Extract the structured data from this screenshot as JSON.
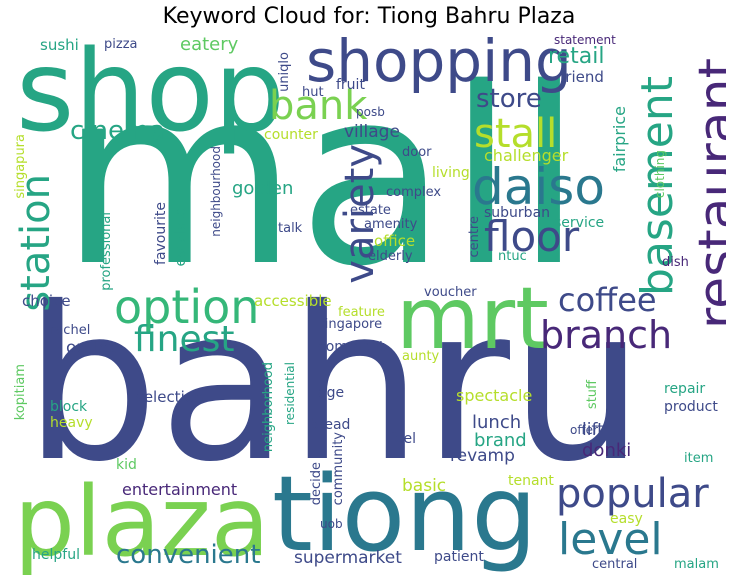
{
  "title": "Keyword Cloud for: Tiong Bahru Plaza",
  "palette": [
    "#440154",
    "#3b528b",
    "#21918c",
    "#26a584",
    "#5ec962",
    "#8fd744",
    "#b5de2b",
    "#fde725"
  ],
  "words": [
    {
      "text": "mall",
      "color": "#26a584"
    },
    {
      "text": "bahru",
      "color": "#3e4a89"
    },
    {
      "text": "plaza",
      "color": "#7ad151"
    },
    {
      "text": "tiong",
      "color": "#2a788e"
    },
    {
      "text": "shop",
      "color": "#26a584"
    },
    {
      "text": "shopping",
      "color": "#3e4a89"
    },
    {
      "text": "mrt",
      "color": "#5ec962"
    },
    {
      "text": "restaurant",
      "color": "#482878"
    },
    {
      "text": "daiso",
      "color": "#2a788e"
    },
    {
      "text": "option",
      "color": "#35b779"
    },
    {
      "text": "bank",
      "color": "#7ad151"
    },
    {
      "text": "basement",
      "color": "#26a584"
    },
    {
      "text": "stall",
      "color": "#b5de2b"
    },
    {
      "text": "floor",
      "color": "#3e4a89"
    },
    {
      "text": "station",
      "color": "#26a584"
    },
    {
      "text": "variety",
      "color": "#3e4a89"
    },
    {
      "text": "popular",
      "color": "#3e4a89"
    },
    {
      "text": "level",
      "color": "#2a788e"
    },
    {
      "text": "branch",
      "color": "#482878"
    },
    {
      "text": "coffee",
      "color": "#3e4a89"
    },
    {
      "text": "finest",
      "color": "#26a584"
    },
    {
      "text": "convenient",
      "color": "#2a788e"
    },
    {
      "text": "cinema",
      "color": "#26a584"
    },
    {
      "text": "store",
      "color": "#3e4a89"
    },
    {
      "text": "retail",
      "color": "#26a584"
    },
    {
      "text": "eatery",
      "color": "#5ec962"
    },
    {
      "text": "sushi",
      "color": "#26a584"
    },
    {
      "text": "pizza",
      "color": "#3e4a89"
    },
    {
      "text": "uniqlo",
      "color": "#3e4a89"
    },
    {
      "text": "hut",
      "color": "#3e4a89"
    },
    {
      "text": "fruit",
      "color": "#3e4a89"
    },
    {
      "text": "statement",
      "color": "#482878"
    },
    {
      "text": "friend",
      "color": "#3e4a89"
    },
    {
      "text": "fairprice",
      "color": "#26a584"
    },
    {
      "text": "clothing",
      "color": "#5ec962"
    },
    {
      "text": "posb",
      "color": "#3e4a89"
    },
    {
      "text": "village",
      "color": "#3e4a89"
    },
    {
      "text": "challenger",
      "color": "#b5de2b"
    },
    {
      "text": "counter",
      "color": "#b5de2b"
    },
    {
      "text": "door",
      "color": "#3e4a89"
    },
    {
      "text": "living",
      "color": "#b5de2b"
    },
    {
      "text": "complex",
      "color": "#3e4a89"
    },
    {
      "text": "estate",
      "color": "#3e4a89"
    },
    {
      "text": "suburban",
      "color": "#3e4a89"
    },
    {
      "text": "amenity",
      "color": "#3e4a89"
    },
    {
      "text": "service",
      "color": "#26a584"
    },
    {
      "text": "office",
      "color": "#b5de2b"
    },
    {
      "text": "centre",
      "color": "#3e4a89"
    },
    {
      "text": "elderly",
      "color": "#3e4a89"
    },
    {
      "text": "ntuc",
      "color": "#26a584"
    },
    {
      "text": "golden",
      "color": "#26a584"
    },
    {
      "text": "neighbourhood",
      "color": "#3e4a89"
    },
    {
      "text": "favourite",
      "color": "#3e4a89"
    },
    {
      "text": "escalator",
      "color": "#26a584"
    },
    {
      "text": "talk",
      "color": "#3e4a89"
    },
    {
      "text": "singapura",
      "color": "#b5de2b"
    },
    {
      "text": "professional",
      "color": "#26a584"
    },
    {
      "text": "dish",
      "color": "#482878"
    },
    {
      "text": "choice",
      "color": "#3e4a89"
    },
    {
      "text": "accessible",
      "color": "#b5de2b"
    },
    {
      "text": "feature",
      "color": "#b5de2b"
    },
    {
      "text": "voucher",
      "color": "#3e4a89"
    },
    {
      "text": "singapore",
      "color": "#3e4a89"
    },
    {
      "text": "rachel",
      "color": "#3e4a89"
    },
    {
      "text": "outlet",
      "color": "#3e4a89"
    },
    {
      "text": "comment",
      "color": "#3e4a89"
    },
    {
      "text": "aunty",
      "color": "#b5de2b"
    },
    {
      "text": "age",
      "color": "#3e4a89"
    },
    {
      "text": "spectacle",
      "color": "#b5de2b"
    },
    {
      "text": "neighborhood",
      "color": "#26a584"
    },
    {
      "text": "residential",
      "color": "#26a584"
    },
    {
      "text": "stuff",
      "color": "#5ec962"
    },
    {
      "text": "repair",
      "color": "#26a584"
    },
    {
      "text": "product",
      "color": "#3e4a89"
    },
    {
      "text": "kopitiam",
      "color": "#5ec962"
    },
    {
      "text": "selection",
      "color": "#3e4a89"
    },
    {
      "text": "block",
      "color": "#26a584"
    },
    {
      "text": "heavy",
      "color": "#b5de2b"
    },
    {
      "text": "bread",
      "color": "#3e4a89"
    },
    {
      "text": "lunch",
      "color": "#3e4a89"
    },
    {
      "text": "lift",
      "color": "#3e4a89"
    },
    {
      "text": "brand",
      "color": "#26a584"
    },
    {
      "text": "offer",
      "color": "#3e4a89"
    },
    {
      "text": "feel",
      "color": "#3e4a89"
    },
    {
      "text": "revamp",
      "color": "#3e4a89"
    },
    {
      "text": "donki",
      "color": "#482878"
    },
    {
      "text": "community",
      "color": "#3e4a89"
    },
    {
      "text": "decide",
      "color": "#3e4a89"
    },
    {
      "text": "item",
      "color": "#26a584"
    },
    {
      "text": "kid",
      "color": "#5ec962"
    },
    {
      "text": "entertainment",
      "color": "#482878"
    },
    {
      "text": "basic",
      "color": "#b5de2b"
    },
    {
      "text": "tenant",
      "color": "#b5de2b"
    },
    {
      "text": "easy",
      "color": "#b5de2b"
    },
    {
      "text": "uob",
      "color": "#3e4a89"
    },
    {
      "text": "supermarket",
      "color": "#3e4a89"
    },
    {
      "text": "patient",
      "color": "#3e4a89"
    },
    {
      "text": "central",
      "color": "#3e4a89"
    },
    {
      "text": "malam",
      "color": "#26a584"
    },
    {
      "text": "helpful",
      "color": "#26a584"
    }
  ]
}
